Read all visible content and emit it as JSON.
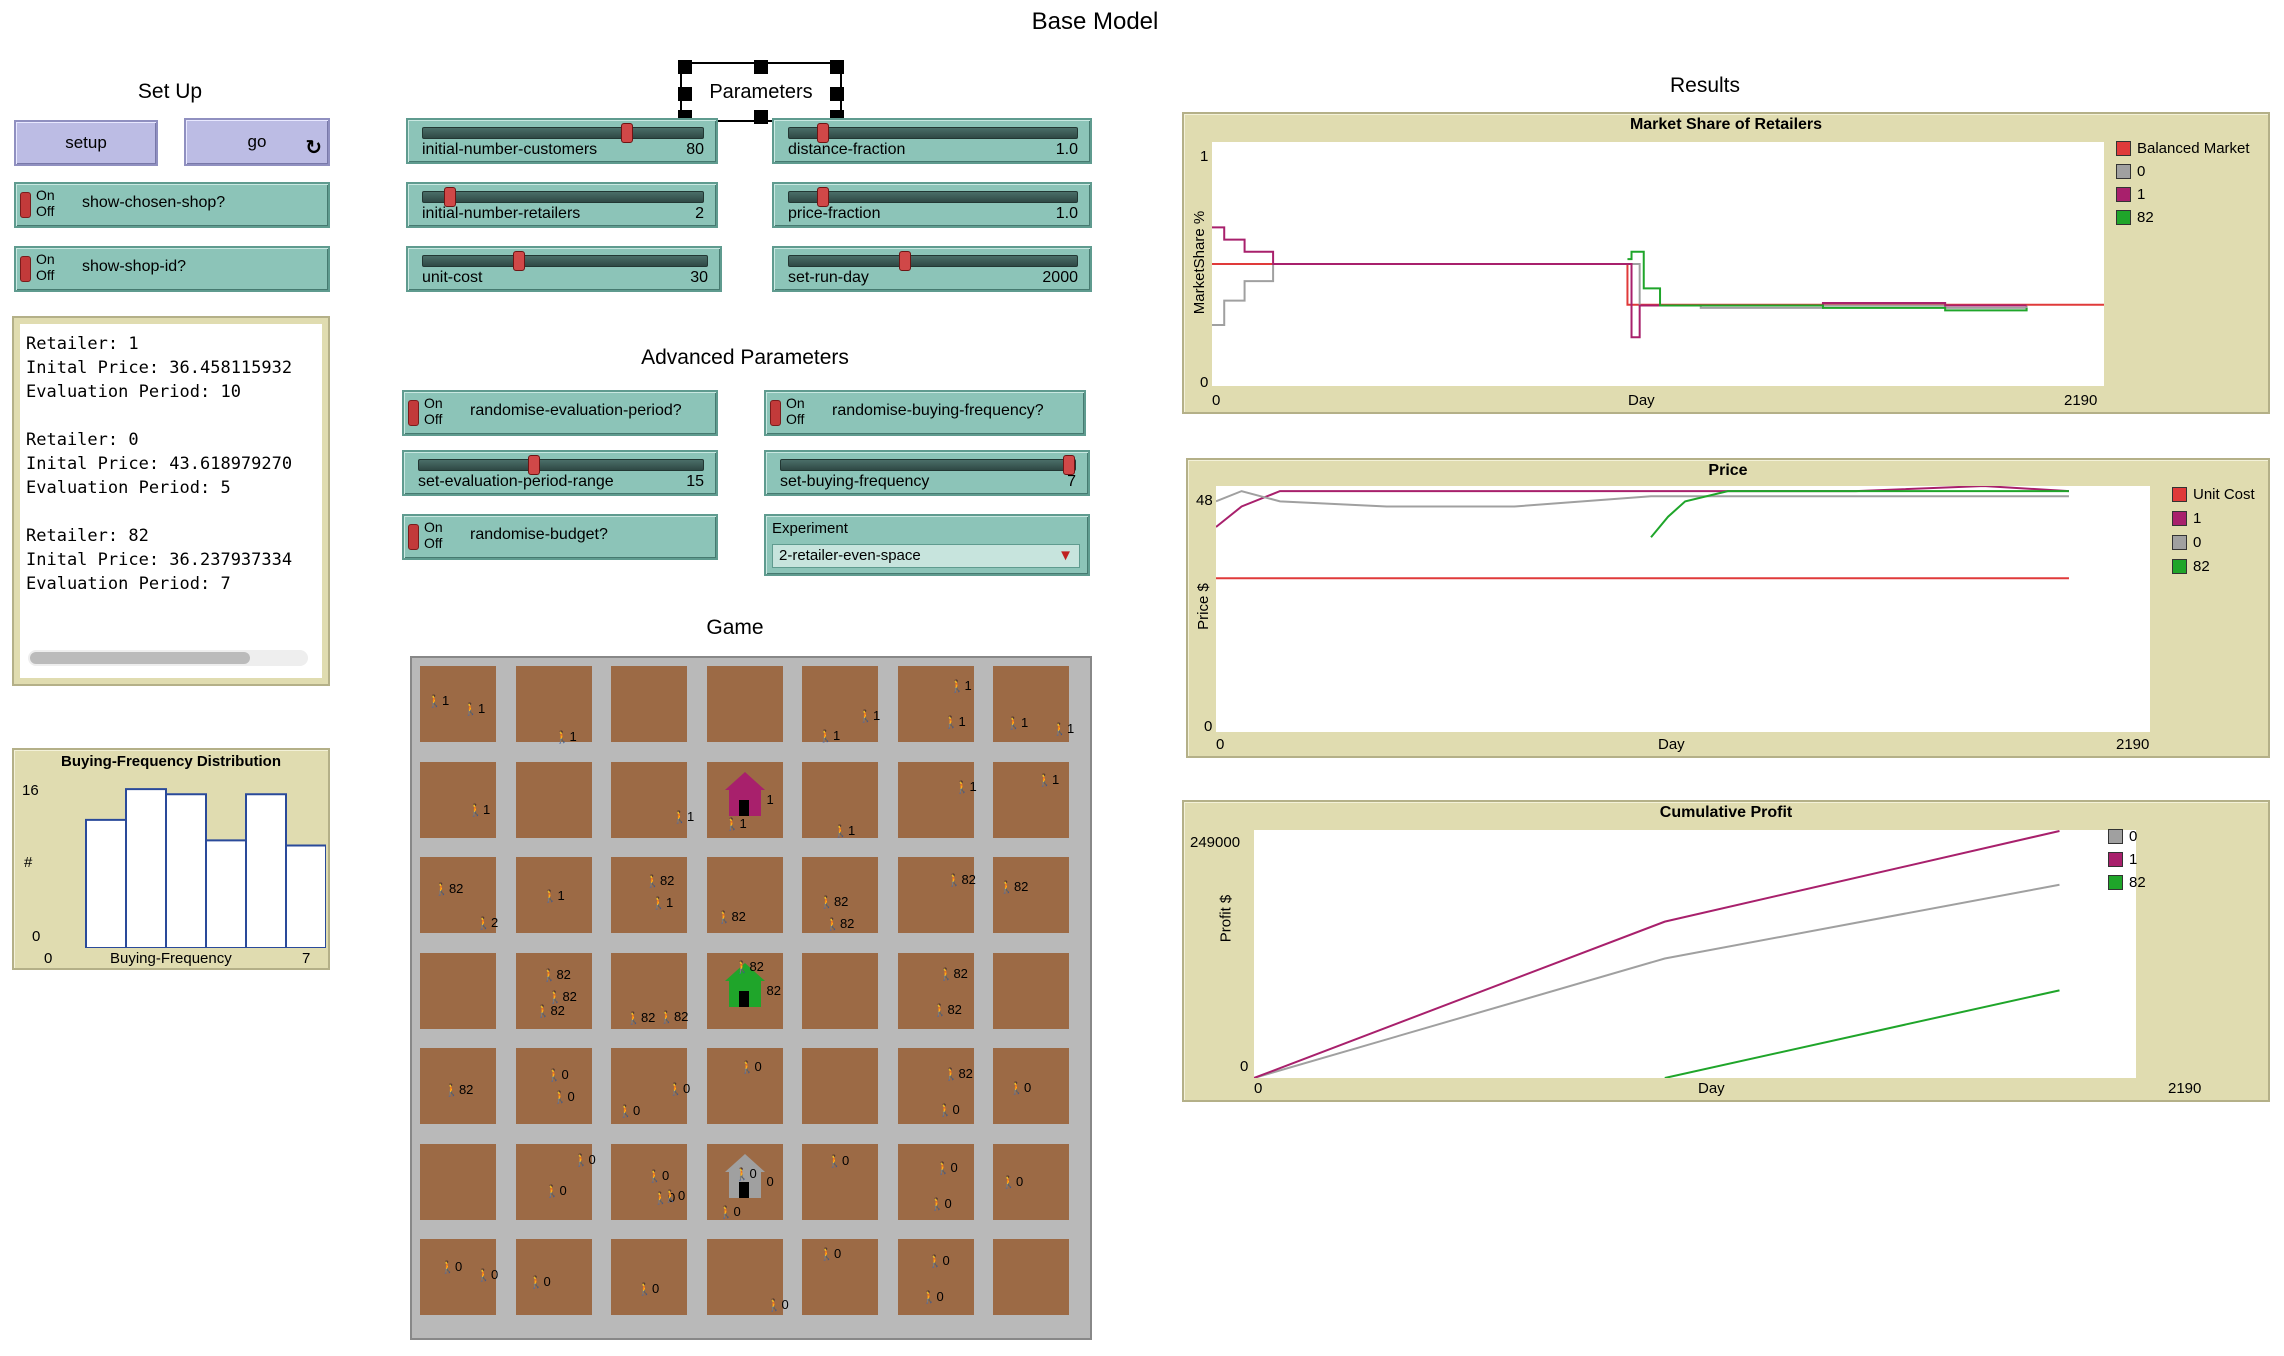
{
  "model_title": "Base Model",
  "sections": {
    "setup": "Set Up",
    "params": "Parameters",
    "advanced": "Advanced Parameters",
    "game": "Game",
    "results": "Results"
  },
  "buttons": {
    "setup": "setup",
    "go": "go",
    "go_icon": "loop-arrows-icon"
  },
  "switch_states": {
    "on": "On",
    "off": "Off"
  },
  "switches": {
    "show_chosen_shop": "show-chosen-shop?",
    "show_shop_id": "show-shop-id?",
    "randomise_eval": "randomise-evaluation-period?",
    "randomise_buying": "randomise-buying-frequency?",
    "randomise_budget": "randomise-budget?"
  },
  "sliders": {
    "initial_customers": {
      "name": "initial-number-customers",
      "value": "80",
      "fraction": 0.74
    },
    "distance_fraction": {
      "name": "distance-fraction",
      "value": "1.0",
      "fraction": 0.1
    },
    "initial_retailers": {
      "name": "initial-number-retailers",
      "value": "2",
      "fraction": 0.08
    },
    "price_fraction": {
      "name": "price-fraction",
      "value": "1.0",
      "fraction": 0.1
    },
    "unit_cost": {
      "name": "unit-cost",
      "value": "30",
      "fraction": 0.33
    },
    "set_run_day": {
      "name": "set-run-day",
      "value": "2000",
      "fraction": 0.4
    },
    "eval_range": {
      "name": "set-evaluation-period-range",
      "value": "15",
      "fraction": 0.4
    },
    "buying_freq": {
      "name": "set-buying-frequency",
      "value": "7",
      "fraction": 1.0
    }
  },
  "chooser": {
    "label": "Experiment",
    "value": "2-retailer-even-space",
    "arrow_icon": "dropdown-triangle-icon"
  },
  "output_text": "Retailer: 1\nInital Price: 36.458115932\nEvaluation Period: 10\n\nRetailer: 0\nInital Price: 43.618979270\nEvaluation Period: 5\n\nRetailer: 82\nInital Price: 36.237937334\nEvaluation Period: 7",
  "histogram": {
    "title": "Buying-Frequency Distribution",
    "xlabel": "Buying-Frequency",
    "ylabel": "#",
    "xmin": "0",
    "xmax": "7",
    "ymin": "0",
    "ymax": "16"
  },
  "market_share": {
    "title": "Market Share of Retailers",
    "xlabel": "Day",
    "ylabel": "MarketShare %",
    "xmin": "0",
    "xmax": "2190",
    "ymin": "0",
    "ymax": "1",
    "legend": [
      {
        "name": "Balanced Market",
        "color": "#e03a3a"
      },
      {
        "name": "0",
        "color": "#a0a0a0"
      },
      {
        "name": "1",
        "color": "#a8206c"
      },
      {
        "name": "82",
        "color": "#1fa52a"
      }
    ]
  },
  "price": {
    "title": "Price",
    "xlabel": "Day",
    "ylabel": "Price $",
    "xmin": "0",
    "xmax": "2190",
    "ymin": "0",
    "ymax": "48",
    "legend": [
      {
        "name": "Unit Cost",
        "color": "#e03a3a"
      },
      {
        "name": "1",
        "color": "#a8206c"
      },
      {
        "name": "0",
        "color": "#a0a0a0"
      },
      {
        "name": "82",
        "color": "#1fa52a"
      }
    ]
  },
  "profit": {
    "title": "Cumulative Profit",
    "xlabel": "Day",
    "ylabel": "Profit $",
    "xmin": "0",
    "xmax": "2190",
    "ymin": "0",
    "ymax": "249000",
    "legend": [
      {
        "name": "0",
        "color": "#a0a0a0"
      },
      {
        "name": "1",
        "color": "#a8206c"
      },
      {
        "name": "82",
        "color": "#1fa52a"
      }
    ]
  },
  "chart_data": [
    {
      "type": "bar",
      "title": "Buying-Frequency Distribution",
      "xlabel": "Buying-Frequency",
      "ylabel": "#",
      "categories": [
        "1",
        "2",
        "3",
        "4",
        "5",
        "6"
      ],
      "values": [
        12.5,
        15.5,
        15,
        10.5,
        15,
        10
      ],
      "xlim": [
        0,
        7
      ],
      "ylim": [
        0,
        16
      ]
    },
    {
      "type": "line",
      "title": "Market Share of Retailers",
      "xlabel": "Day",
      "ylabel": "MarketShare %",
      "xlim": [
        0,
        2190
      ],
      "ylim": [
        0,
        1
      ],
      "series": [
        {
          "name": "Balanced Market",
          "x": [
            0,
            1020,
            1020,
            2190
          ],
          "y": [
            0.5,
            0.5,
            0.333,
            0.333
          ]
        },
        {
          "name": "0",
          "x": [
            0,
            30,
            80,
            150,
            300,
            600,
            1020,
            1050,
            1200,
            1500,
            1800,
            2000
          ],
          "y": [
            0.25,
            0.35,
            0.43,
            0.5,
            0.5,
            0.5,
            0.5,
            0.33,
            0.32,
            0.33,
            0.32,
            0.33
          ]
        },
        {
          "name": "1",
          "x": [
            0,
            30,
            80,
            150,
            300,
            600,
            1020,
            1030,
            1050,
            1200,
            1500,
            1800,
            2000
          ],
          "y": [
            0.65,
            0.6,
            0.55,
            0.5,
            0.5,
            0.5,
            0.5,
            0.2,
            0.33,
            0.33,
            0.34,
            0.33,
            0.33
          ]
        },
        {
          "name": "82",
          "x": [
            1020,
            1030,
            1060,
            1100,
            1200,
            1500,
            1800,
            2000
          ],
          "y": [
            0.52,
            0.55,
            0.4,
            0.33,
            0.33,
            0.32,
            0.31,
            0.32
          ]
        }
      ]
    },
    {
      "type": "line",
      "title": "Price",
      "xlabel": "Day",
      "ylabel": "Price $",
      "xlim": [
        0,
        2190
      ],
      "ylim": [
        0,
        48
      ],
      "series": [
        {
          "name": "Unit Cost",
          "x": [
            0,
            2000
          ],
          "y": [
            30,
            30
          ]
        },
        {
          "name": "1",
          "x": [
            0,
            60,
            150,
            400,
            800,
            1020,
            1200,
            1500,
            1800,
            2000
          ],
          "y": [
            40,
            44,
            47,
            47,
            47,
            47,
            47,
            47,
            48,
            47
          ]
        },
        {
          "name": "0",
          "x": [
            0,
            60,
            150,
            400,
            700,
            1020,
            1200,
            1500,
            1800,
            2000
          ],
          "y": [
            45,
            47,
            45,
            44,
            44,
            46,
            46,
            46,
            46,
            46
          ]
        },
        {
          "name": "82",
          "x": [
            1020,
            1060,
            1100,
            1200,
            1500,
            1800,
            2000
          ],
          "y": [
            38,
            42,
            45,
            47,
            47,
            47,
            47
          ]
        }
      ]
    },
    {
      "type": "line",
      "title": "Cumulative Profit",
      "xlabel": "Day",
      "ylabel": "Profit $",
      "xlim": [
        0,
        2190
      ],
      "ylim": [
        0,
        249000
      ],
      "series": [
        {
          "name": "0",
          "x": [
            0,
            1020,
            2000
          ],
          "y": [
            0,
            120000,
            194000
          ]
        },
        {
          "name": "1",
          "x": [
            0,
            1020,
            2000
          ],
          "y": [
            0,
            157000,
            248000
          ]
        },
        {
          "name": "82",
          "x": [
            1020,
            2000
          ],
          "y": [
            0,
            88000
          ]
        }
      ]
    }
  ],
  "world_agents": [
    {
      "c": 0,
      "r": 0,
      "label": "1",
      "color": "#e0609a"
    },
    {
      "c": 4,
      "r": 0,
      "label": "1",
      "color": "#e07020"
    },
    {
      "c": 6,
      "r": 0,
      "label": "1",
      "color": "#909090"
    },
    {
      "c": 0,
      "r": 0,
      "label": "1",
      "color": "#e07020"
    },
    {
      "c": 1,
      "r": 0,
      "label": "1",
      "color": "#1fa52a"
    },
    {
      "c": 5,
      "r": 0,
      "label": "1",
      "color": "#c02020"
    },
    {
      "c": 5,
      "r": 0,
      "label": "1",
      "color": "#a8206c"
    },
    {
      "c": 6,
      "r": 0,
      "label": "1",
      "color": "#e8d020"
    },
    {
      "c": 4,
      "r": 0,
      "label": "1",
      "color": "#a8206c"
    },
    {
      "c": 0,
      "r": 1,
      "label": "1",
      "color": "#1f9a7a"
    },
    {
      "c": 2,
      "r": 1,
      "label": "1",
      "color": "#909090"
    },
    {
      "c": 3,
      "r": 1,
      "label": "1",
      "color": "#3a7ad0"
    },
    {
      "c": 4,
      "r": 1,
      "label": "1",
      "color": "#1f9a7a"
    },
    {
      "c": 6,
      "r": 1,
      "label": "1",
      "color": "#1fa52a"
    },
    {
      "c": 5,
      "r": 1,
      "label": "1",
      "color": "#c02020"
    },
    {
      "c": 0,
      "r": 2,
      "label": "82",
      "color": "#2a9aa0"
    },
    {
      "c": 1,
      "r": 2,
      "label": "1",
      "color": "#c02020"
    },
    {
      "c": 2,
      "r": 2,
      "label": "1",
      "color": "#707070"
    },
    {
      "c": 2,
      "r": 2,
      "label": "82",
      "color": "#e07020"
    },
    {
      "c": 3,
      "r": 2,
      "label": "82",
      "color": "#e0609a"
    },
    {
      "c": 4,
      "r": 2,
      "label": "82",
      "color": "#2a9aa0"
    },
    {
      "c": 4,
      "r": 2,
      "label": "82",
      "color": "#e07020"
    },
    {
      "c": 5,
      "r": 2,
      "label": "82",
      "color": "#1fa52a"
    },
    {
      "c": 6,
      "r": 2,
      "label": "82",
      "color": "#2a9aa0"
    },
    {
      "c": 0,
      "r": 2,
      "label": "2",
      "color": "#000"
    },
    {
      "c": 1,
      "r": 3,
      "label": "82",
      "color": "#e8d020"
    },
    {
      "c": 1,
      "r": 3,
      "label": "82",
      "color": "#2a9aa0"
    },
    {
      "c": 1,
      "r": 3,
      "label": "82",
      "color": "#a8206c"
    },
    {
      "c": 2,
      "r": 3,
      "label": "82",
      "color": "#e07020"
    },
    {
      "c": 3,
      "r": 3,
      "label": "82",
      "color": "#1f9a7a"
    },
    {
      "c": 5,
      "r": 3,
      "label": "82",
      "color": "#1fa52a"
    },
    {
      "c": 5,
      "r": 3,
      "label": "82",
      "color": "#e07020"
    },
    {
      "c": 2,
      "r": 3,
      "label": "82",
      "color": "#2a9aa0"
    },
    {
      "c": 0,
      "r": 4,
      "label": "82",
      "color": "#e07020"
    },
    {
      "c": 1,
      "r": 4,
      "label": "0",
      "color": "#7a50c0"
    },
    {
      "c": 1,
      "r": 4,
      "label": "0",
      "color": "#e0609a"
    },
    {
      "c": 2,
      "r": 4,
      "label": "0",
      "color": "#2a9aa0"
    },
    {
      "c": 2,
      "r": 4,
      "label": "0",
      "color": "#7a50c0"
    },
    {
      "c": 3,
      "r": 4,
      "label": "0",
      "color": "#e07020"
    },
    {
      "c": 5,
      "r": 4,
      "label": "82",
      "color": "#1f9a7a"
    },
    {
      "c": 5,
      "r": 4,
      "label": "0",
      "color": "#2a9aa0"
    },
    {
      "c": 6,
      "r": 4,
      "label": "0",
      "color": "#c02020"
    },
    {
      "c": 1,
      "r": 5,
      "label": "0",
      "color": "#e0609a"
    },
    {
      "c": 2,
      "r": 5,
      "label": "0",
      "color": "#2a9aa0"
    },
    {
      "c": 2,
      "r": 5,
      "label": "0",
      "color": "#e0609a"
    },
    {
      "c": 3,
      "r": 5,
      "label": "0",
      "color": "#1f9a7a"
    },
    {
      "c": 4,
      "r": 5,
      "label": "0",
      "color": "#e07020"
    },
    {
      "c": 5,
      "r": 5,
      "label": "0",
      "color": "#000"
    },
    {
      "c": 5,
      "r": 5,
      "label": "0",
      "color": "#1fa52a"
    },
    {
      "c": 6,
      "r": 5,
      "label": "0",
      "color": "#e07020"
    },
    {
      "c": 1,
      "r": 5,
      "label": "0",
      "color": "#c02020"
    },
    {
      "c": 2,
      "r": 5,
      "label": "0",
      "color": "#7a50c0"
    },
    {
      "c": 3,
      "r": 5,
      "label": "0",
      "color": "#3a7ad0"
    },
    {
      "c": 3,
      "r": 6,
      "label": "0",
      "color": "#2a9aa0"
    },
    {
      "c": 4,
      "r": 6,
      "label": "0",
      "color": "#c02020"
    },
    {
      "c": 5,
      "r": 6,
      "label": "0",
      "color": "#1fa52a"
    },
    {
      "c": 5,
      "r": 6,
      "label": "0",
      "color": "#e07020"
    },
    {
      "c": 0,
      "r": 6,
      "label": "0",
      "color": "#1f9a7a"
    },
    {
      "c": 1,
      "r": 6,
      "label": "0",
      "color": "#1fa52a"
    },
    {
      "c": 2,
      "r": 6,
      "label": "0",
      "color": "#000"
    },
    {
      "c": 0,
      "r": 6,
      "label": "0",
      "color": "#e07020"
    }
  ],
  "world_shops": [
    {
      "label": "1",
      "color": "#a8206c"
    },
    {
      "label": "82",
      "color": "#1fa52a"
    },
    {
      "label": "0",
      "color": "#a0a0a0"
    }
  ]
}
